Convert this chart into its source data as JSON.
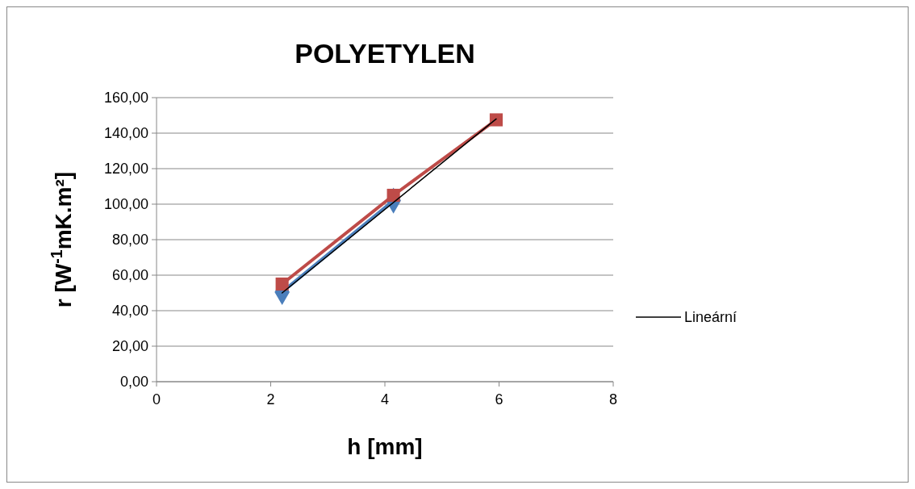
{
  "chart_data": {
    "type": "line",
    "title": "POLYETYLEN",
    "xlabel": "h [mm]",
    "ylabel": "r [W$^{-1}$mK.m²]",
    "xlim": [
      0,
      8
    ],
    "xticks": [
      0,
      2,
      4,
      6,
      8
    ],
    "ylim": [
      0,
      160
    ],
    "yticks": [
      {
        "value": 0,
        "label": "0,00"
      },
      {
        "value": 20,
        "label": "20,00"
      },
      {
        "value": 40,
        "label": "40,00"
      },
      {
        "value": 60,
        "label": "60,00"
      },
      {
        "value": 80,
        "label": "80,00"
      },
      {
        "value": 100,
        "label": "100,00"
      },
      {
        "value": 120,
        "label": "120,00"
      },
      {
        "value": 140,
        "label": "140,00"
      },
      {
        "value": 160,
        "label": "160,00"
      }
    ],
    "grid": "y",
    "legend": "right",
    "series": [
      {
        "color": "#4a7ebb",
        "x": [
          2.2,
          4.15
        ],
        "values": [
          50.5,
          102
        ],
        "marker": "diamond"
      },
      {
        "color": "#be4b48",
        "x": [
          2.2,
          4.15,
          5.95
        ],
        "values": [
          55,
          105,
          147.5
        ],
        "marker": "square"
      },
      {
        "name": "Lineární",
        "color": "#000000",
        "x": [
          2.2,
          5.95
        ],
        "values": [
          50,
          148
        ],
        "marker": "none"
      }
    ]
  }
}
